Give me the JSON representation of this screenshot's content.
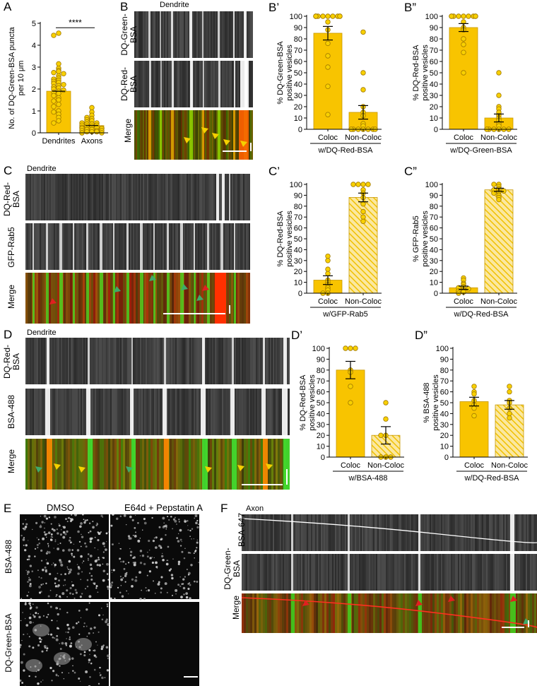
{
  "colors": {
    "bar_yellow": "#f8c400",
    "dot_fill": "#f8d000",
    "dot_stroke": "#a07800",
    "arrow_yellow": "#f5d000",
    "arrow_green": "#3faa6a",
    "arrow_red": "#e02020"
  },
  "panels": {
    "A": {
      "label": "A"
    },
    "B": {
      "label": "B",
      "region": "Dendrite",
      "rows": [
        "DQ-Green-\nBSA",
        "DQ-Red-\nBSA",
        "Merge"
      ]
    },
    "C": {
      "label": "C",
      "region": "Dendrite",
      "rows": [
        "DQ-Red-\nBSA",
        "GFP-Rab5",
        "Merge"
      ]
    },
    "D": {
      "label": "D",
      "region": "Dendrite",
      "rows": [
        "DQ-Red-\nBSA",
        "BSA-488",
        "Merge"
      ]
    },
    "E": {
      "label": "E",
      "cols": [
        "DMSO",
        "E64d + Pepstatin A"
      ],
      "rows": [
        "BSA-488",
        "DQ-Green-BSA"
      ]
    },
    "F": {
      "label": "F",
      "region": "Axon",
      "rows": [
        "BSA-647",
        "DQ-Green-\nBSA",
        "Merge"
      ]
    }
  },
  "chart_data": [
    {
      "id": "A",
      "type": "bar",
      "panel_label": "A",
      "categories": [
        "Dendrites",
        "Axons"
      ],
      "values": [
        1.9,
        0.33
      ],
      "ylabel": "No. of DQ-Green-BSA puncta\nper 10 μm",
      "ylim": [
        0,
        5
      ],
      "yticks": [
        0,
        1,
        2,
        3,
        4,
        5
      ],
      "significance": "****",
      "points": [
        [
          4.55,
          4.45,
          3.15,
          2.95,
          2.85,
          2.8,
          2.75,
          2.7,
          2.6,
          2.5,
          2.45,
          2.4,
          2.35,
          2.3,
          2.25,
          2.2,
          2.15,
          2.1,
          2.05,
          2.0,
          1.95,
          1.9,
          1.85,
          1.8,
          1.7,
          1.6,
          1.5,
          1.45,
          1.3,
          1.2,
          1.0,
          0.95,
          0.85,
          0.7,
          0.55,
          0.45
        ],
        [
          1.15,
          0.95,
          0.8,
          0.7,
          0.65,
          0.6,
          0.55,
          0.5,
          0.45,
          0.45,
          0.4,
          0.4,
          0.35,
          0.35,
          0.3,
          0.3,
          0.25,
          0.25,
          0.2,
          0.2,
          0.2,
          0.15,
          0.15,
          0.1,
          0.1,
          0.1,
          0.05,
          0.05,
          0.05,
          0.0,
          0.0,
          0.0
        ]
      ]
    },
    {
      "id": "B1",
      "type": "bar",
      "panel_label": "B’",
      "categories": [
        "Coloc",
        "Non-Coloc"
      ],
      "values": [
        85,
        15
      ],
      "errors": [
        6,
        6
      ],
      "ylabel": "% DQ-Green-BSA\npositive vesicles",
      "ylim": [
        0,
        100
      ],
      "yticks": [
        0,
        10,
        20,
        30,
        40,
        50,
        60,
        70,
        80,
        90,
        100
      ],
      "xgroup": "w/DQ-Red-BSA",
      "hatched": [
        false,
        false
      ],
      "points": [
        [
          100,
          100,
          100,
          100,
          100,
          100,
          100,
          100,
          100,
          100,
          95,
          88,
          76,
          65,
          55,
          38,
          13
        ],
        [
          86,
          50,
          35,
          20,
          15,
          12,
          5,
          3,
          0,
          0,
          0,
          0,
          0,
          0,
          0
        ]
      ]
    },
    {
      "id": "B2",
      "type": "bar",
      "panel_label": "B”",
      "categories": [
        "Coloc",
        "Non-Coloc"
      ],
      "values": [
        90,
        10
      ],
      "errors": [
        3.5,
        3.5
      ],
      "ylabel": "% DQ-Red-BSA\npositive vesicles",
      "ylim": [
        0,
        100
      ],
      "yticks": [
        0,
        10,
        20,
        30,
        40,
        50,
        60,
        70,
        80,
        90,
        100
      ],
      "xgroup": "w/DQ-Green-BSA",
      "hatched": [
        false,
        false
      ],
      "points": [
        [
          100,
          100,
          100,
          100,
          100,
          100,
          100,
          100,
          100,
          95,
          90,
          88,
          80,
          75,
          68,
          50
        ],
        [
          50,
          30,
          20,
          18,
          15,
          12,
          10,
          8,
          5,
          3,
          0,
          0,
          0,
          0,
          0,
          0
        ]
      ]
    },
    {
      "id": "C1",
      "type": "bar",
      "panel_label": "C’",
      "categories": [
        "Coloc",
        "Non-Coloc"
      ],
      "values": [
        12,
        88
      ],
      "errors": [
        4,
        4
      ],
      "ylabel": "% DQ-Red-BSA\npositive vesicles",
      "ylim": [
        0,
        100
      ],
      "yticks": [
        0,
        10,
        20,
        30,
        40,
        50,
        60,
        70,
        80,
        90,
        100
      ],
      "xgroup": "w/GFP-Rab5",
      "hatched": [
        false,
        true
      ],
      "points": [
        [
          34,
          30,
          22,
          18,
          12,
          10,
          8,
          5,
          3,
          0,
          0
        ],
        [
          100,
          100,
          100,
          100,
          95,
          92,
          88,
          82,
          75,
          70,
          66
        ]
      ]
    },
    {
      "id": "C2",
      "type": "bar",
      "panel_label": "C”",
      "categories": [
        "Coloc",
        "Non-Coloc"
      ],
      "values": [
        5,
        95
      ],
      "errors": [
        1.5,
        1.5
      ],
      "ylabel": "% GFP-Rab5\npositive vesicles",
      "ylim": [
        0,
        100
      ],
      "yticks": [
        0,
        10,
        20,
        30,
        40,
        50,
        60,
        70,
        80,
        90,
        100
      ],
      "xgroup": "w/DQ-Red-BSA",
      "hatched": [
        false,
        true
      ],
      "points": [
        [
          14,
          12,
          9,
          8,
          6,
          5,
          4,
          3,
          2,
          1,
          0
        ],
        [
          100,
          100,
          98,
          96,
          95,
          94,
          93,
          92,
          90,
          88,
          86
        ]
      ]
    },
    {
      "id": "D1",
      "type": "bar",
      "panel_label": "D’",
      "categories": [
        "Coloc",
        "Non-Coloc"
      ],
      "values": [
        80,
        20
      ],
      "errors": [
        8,
        8
      ],
      "ylabel": "% DQ-Red-BSA\npositive vesicles",
      "ylim": [
        0,
        100
      ],
      "yticks": [
        0,
        10,
        20,
        30,
        40,
        50,
        60,
        70,
        80,
        90,
        100
      ],
      "xgroup": "w/BSA-488",
      "hatched": [
        false,
        true
      ],
      "points": [
        [
          100,
          100,
          100,
          80,
          78,
          65,
          50
        ],
        [
          50,
          35,
          20,
          20,
          0,
          0,
          0
        ]
      ]
    },
    {
      "id": "D2",
      "type": "bar",
      "panel_label": "D”",
      "categories": [
        "Coloc",
        "Non-Coloc"
      ],
      "values": [
        51,
        48
      ],
      "errors": [
        4,
        4
      ],
      "ylabel": "% BSA-488\npositive vesicles",
      "ylim": [
        0,
        100
      ],
      "yticks": [
        0,
        10,
        20,
        30,
        40,
        50,
        60,
        70,
        80,
        90,
        100
      ],
      "xgroup": "w/DQ-Red-BSA",
      "hatched": [
        false,
        true
      ],
      "points": [
        [
          65,
          60,
          58,
          52,
          48,
          45,
          38
        ],
        [
          65,
          60,
          52,
          50,
          45,
          40,
          36
        ]
      ]
    }
  ]
}
